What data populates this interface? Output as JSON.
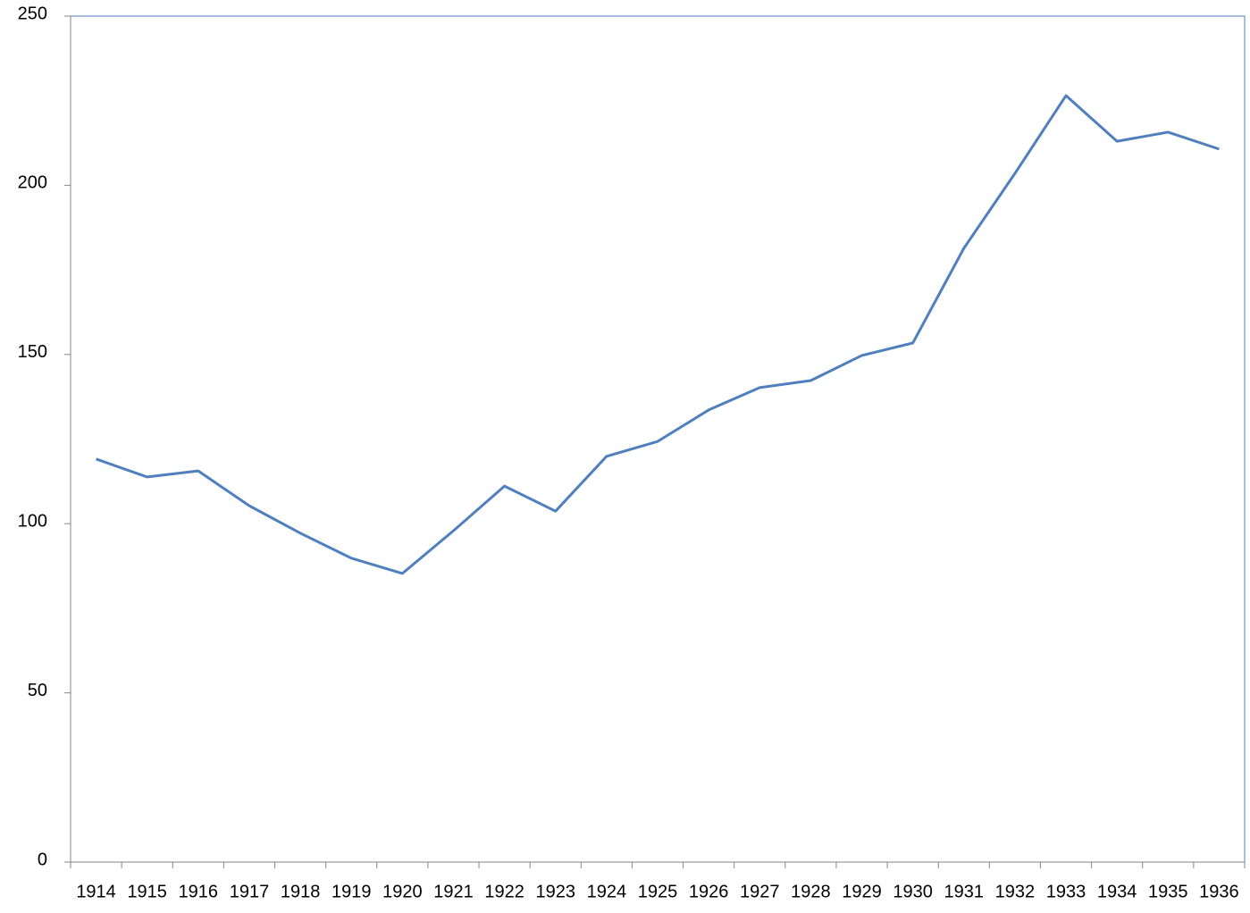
{
  "chart_data": {
    "type": "line",
    "categories": [
      "1914",
      "1915",
      "1916",
      "1917",
      "1918",
      "1919",
      "1920",
      "1921",
      "1922",
      "1923",
      "1924",
      "1925",
      "1926",
      "1927",
      "1928",
      "1929",
      "1930",
      "1931",
      "1932",
      "1933",
      "1934",
      "1935",
      "1936"
    ],
    "values": [
      119.1,
      113.8,
      115.6,
      105.3,
      97.2,
      89.8,
      85.3,
      97.9,
      111.1,
      103.7,
      119.9,
      124.3,
      133.6,
      140.2,
      142.3,
      149.7,
      153.4,
      181.4,
      203.5,
      226.5,
      213.0,
      215.7,
      210.7
    ],
    "color": "#4f7fbd",
    "ylim": [
      0,
      250
    ],
    "yticks": [
      0,
      50,
      100,
      150,
      200,
      250
    ],
    "grid": false
  }
}
